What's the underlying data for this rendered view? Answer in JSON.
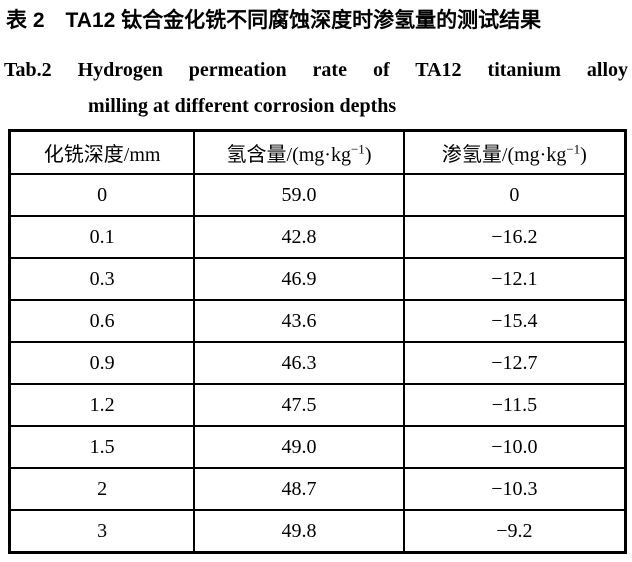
{
  "caption": {
    "zh": "表 2　TA12 钛合金化铣不同腐蚀深度时渗氢量的测试结果",
    "en_line1": "Tab.2 Hydrogen permeation rate of TA12 titanium alloy",
    "en_line2": "milling at different corrosion depths"
  },
  "table": {
    "headers": [
      {
        "text": "化铣深度/mm"
      },
      {
        "pre": "氢含量/(mg·kg",
        "sup": "−1",
        "post": ")"
      },
      {
        "pre": "渗氢量/(mg·kg",
        "sup": "−1",
        "post": ")"
      }
    ],
    "rows": [
      [
        "0",
        "59.0",
        "0"
      ],
      [
        "0.1",
        "42.8",
        "−16.2"
      ],
      [
        "0.3",
        "46.9",
        "−12.1"
      ],
      [
        "0.6",
        "43.6",
        "−15.4"
      ],
      [
        "0.9",
        "46.3",
        "−12.7"
      ],
      [
        "1.2",
        "47.5",
        "−11.5"
      ],
      [
        "1.5",
        "49.0",
        "−10.0"
      ],
      [
        "2",
        "48.7",
        "−10.3"
      ],
      [
        "3",
        "49.8",
        "−9.2"
      ]
    ]
  },
  "colors": {
    "text": "#000000",
    "background": "#ffffff",
    "border": "#000000"
  }
}
